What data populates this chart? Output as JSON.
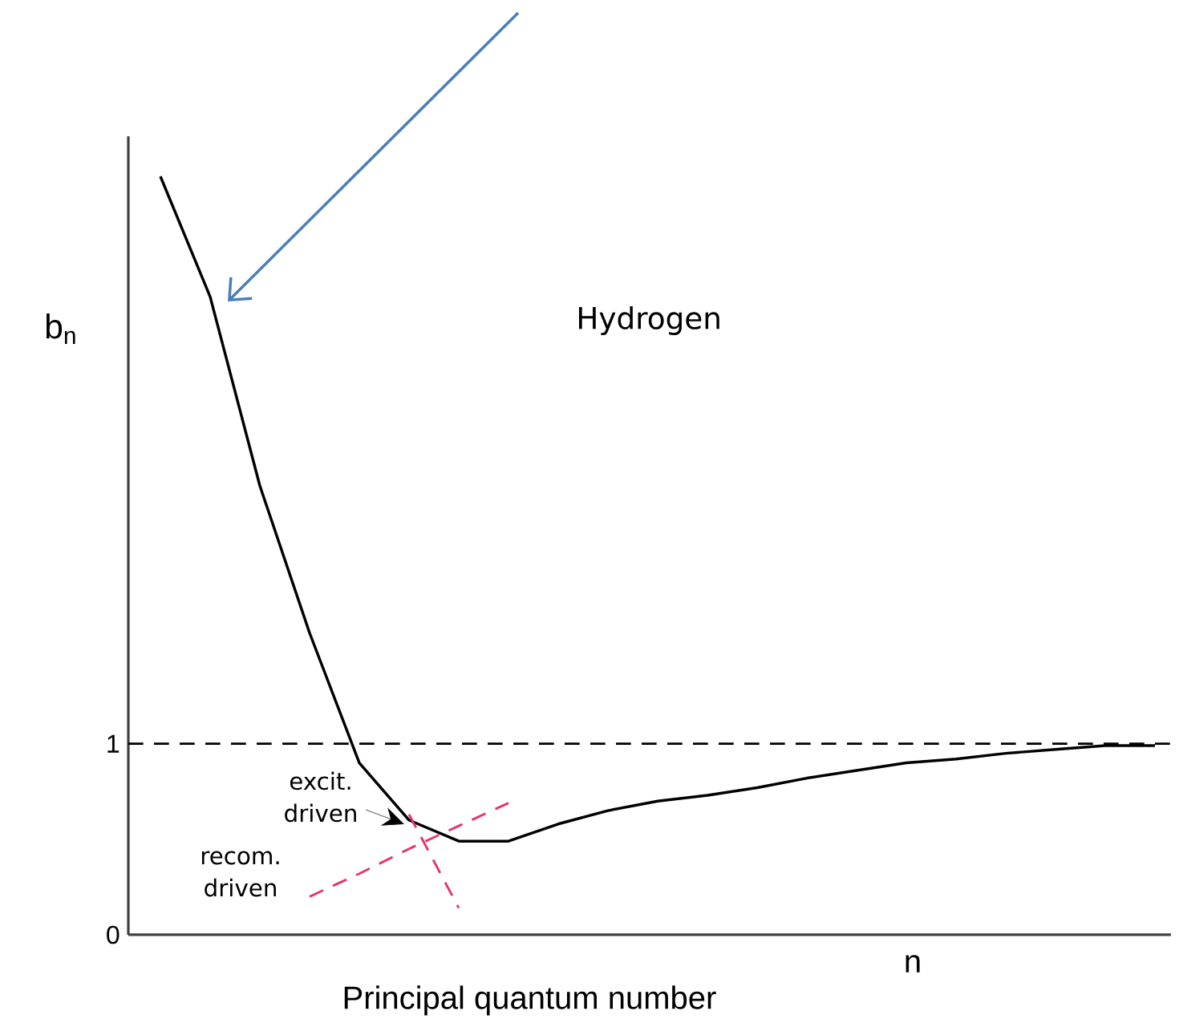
{
  "chart_data": {
    "type": "line",
    "ylabel": "b$_{n}$",
    "xlabel": "Principal quantum number",
    "annotations": [
      "Hydrogen",
      "n"
    ],
    "categories": [
      null,
      null,
      null,
      null,
      null,
      null,
      null,
      null,
      null,
      null,
      null,
      null,
      null,
      null,
      null,
      null,
      null,
      null,
      null,
      null,
      null
    ],
    "series": [
      {
        "color": "#000000",
        "line_style": "solid",
        "values": [
          3.97,
          3.34,
          2.35,
          1.58,
          0.9,
          0.6,
          0.49,
          0.49,
          0.58,
          0.65,
          0.7,
          0.73,
          0.77,
          0.82,
          0.86,
          0.9,
          0.92,
          0.95,
          0.97,
          0.99,
          0.99
        ]
      },
      {
        "name": "excit. driven",
        "color": "#e6336e",
        "line_style": "dashed",
        "values": [
          null,
          null,
          null,
          null,
          null,
          0.63,
          0.14,
          null,
          null,
          null,
          null,
          null,
          null,
          null,
          null,
          null,
          null,
          null,
          null,
          null,
          null
        ]
      },
      {
        "name": "recom. driven",
        "color": "#e6336e",
        "line_style": "dashed",
        "values": [
          null,
          null,
          null,
          0.2,
          0.32,
          0.45,
          0.57,
          0.69,
          null,
          null,
          null,
          null,
          null,
          null,
          null,
          null,
          null,
          null,
          null,
          null,
          null
        ]
      }
    ],
    "ylim": [
      0,
      4.18
    ],
    "yticks": [
      0,
      1
    ],
    "ref_lines": [
      {
        "axis": "y",
        "value": 1,
        "color": "#000000",
        "line_style": "dashed"
      }
    ],
    "tick_labels": "y",
    "marker": "none",
    "grid": false
  }
}
